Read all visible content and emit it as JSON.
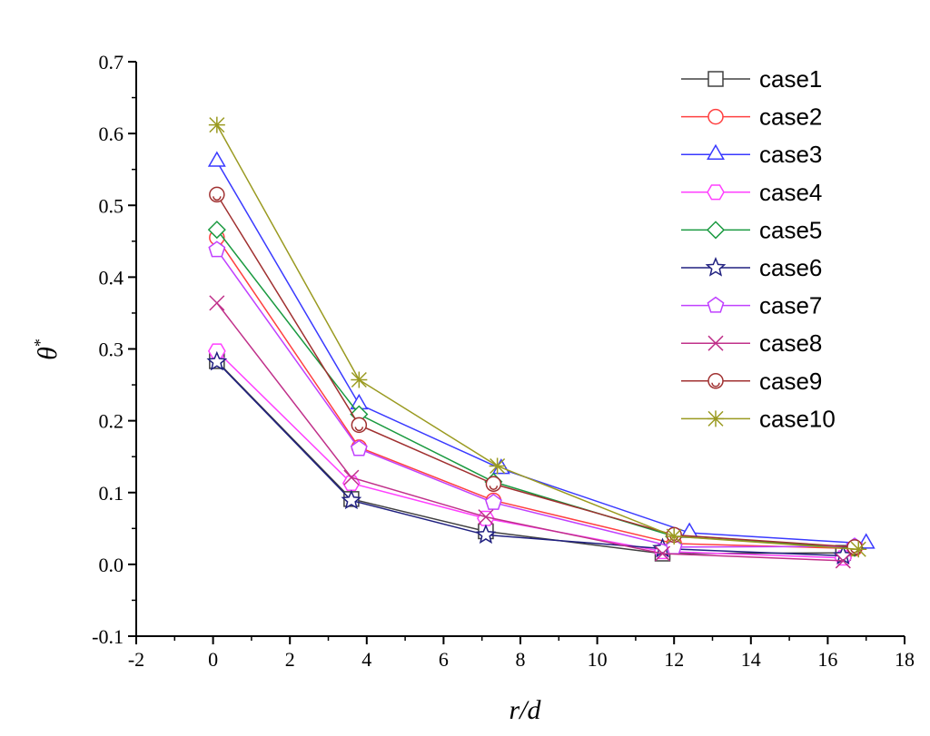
{
  "chart_data": {
    "type": "line",
    "title": "",
    "xlabel": "r/d",
    "ylabel": "θ",
    "ylabel_superscript": "*",
    "xlim": [
      -2,
      18
    ],
    "ylim": [
      -0.1,
      0.7
    ],
    "x_ticks": [
      "-2",
      "0",
      "2",
      "4",
      "6",
      "8",
      "10",
      "12",
      "14",
      "16",
      "18"
    ],
    "y_ticks": [
      "-0.1",
      "0.0",
      "0.1",
      "0.2",
      "0.3",
      "0.4",
      "0.5",
      "0.6",
      "0.7"
    ],
    "legend_position": "top-right",
    "grid": false,
    "series": [
      {
        "name": "case1",
        "color": "#404040",
        "marker": "square",
        "x": [
          0.1,
          3.6,
          7.1,
          11.7,
          16.4
        ],
        "y": [
          0.283,
          0.091,
          0.046,
          0.015,
          0.016
        ]
      },
      {
        "name": "case2",
        "color": "#ff4040",
        "marker": "circle",
        "x": [
          0.1,
          3.8,
          7.3,
          12.0,
          16.7
        ],
        "y": [
          0.455,
          0.163,
          0.089,
          0.029,
          0.022
        ]
      },
      {
        "name": "case3",
        "color": "#3a3aff",
        "marker": "triangle",
        "x": [
          0.1,
          3.8,
          7.5,
          12.4,
          17.0
        ],
        "y": [
          0.561,
          0.223,
          0.133,
          0.044,
          0.029
        ]
      },
      {
        "name": "case4",
        "color": "#ff40ff",
        "marker": "hexagon",
        "x": [
          0.1,
          3.6,
          7.1,
          11.7,
          16.4
        ],
        "y": [
          0.297,
          0.113,
          0.064,
          0.018,
          0.009
        ]
      },
      {
        "name": "case5",
        "color": "#1a9a40",
        "marker": "diamond",
        "x": [
          0.1,
          3.8,
          7.3,
          12.0,
          16.7
        ],
        "y": [
          0.466,
          0.209,
          0.115,
          0.039,
          0.023
        ]
      },
      {
        "name": "case6",
        "color": "#202080",
        "marker": "star",
        "x": [
          0.1,
          3.6,
          7.1,
          11.7,
          16.4
        ],
        "y": [
          0.282,
          0.089,
          0.041,
          0.022,
          0.012
        ]
      },
      {
        "name": "case7",
        "color": "#c040ff",
        "marker": "pentagon",
        "x": [
          0.1,
          3.8,
          7.3,
          12.0,
          16.7
        ],
        "y": [
          0.438,
          0.161,
          0.086,
          0.024,
          0.025
        ]
      },
      {
        "name": "case8",
        "color": "#c0308a",
        "marker": "x",
        "x": [
          0.1,
          3.6,
          7.1,
          11.7,
          16.4
        ],
        "y": [
          0.364,
          0.121,
          0.066,
          0.015,
          0.005
        ]
      },
      {
        "name": "case9",
        "color": "#a03030",
        "marker": "circle-dot",
        "x": [
          0.1,
          3.8,
          7.3,
          12.0,
          16.7
        ],
        "y": [
          0.515,
          0.194,
          0.112,
          0.041,
          0.024
        ]
      },
      {
        "name": "case10",
        "color": "#9a9a20",
        "marker": "asterisk",
        "x": [
          0.1,
          3.8,
          7.4,
          12.0,
          16.8
        ],
        "y": [
          0.612,
          0.257,
          0.137,
          0.039,
          0.021
        ]
      }
    ]
  }
}
